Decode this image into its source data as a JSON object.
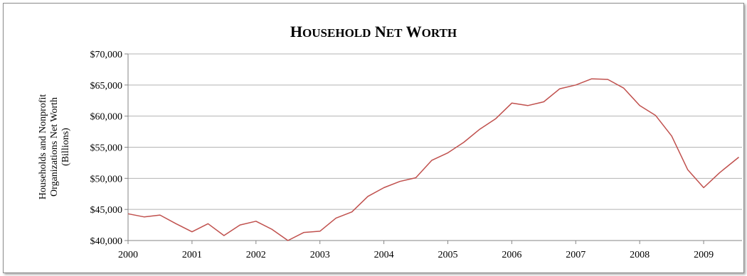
{
  "chart_data": {
    "type": "line",
    "title": "Household Net Worth",
    "ylabel": [
      "Households and Nonprofit",
      "Organizations Net Worth",
      "(Billions)"
    ],
    "xlabel": "",
    "x_ticks": [
      "2000",
      "2001",
      "2002",
      "2003",
      "2004",
      "2005",
      "2006",
      "2007",
      "2008",
      "2009"
    ],
    "y_ticks": [
      "$40,000",
      "$45,000",
      "$50,000",
      "$55,000",
      "$60,000",
      "$65,000",
      "$70,000"
    ],
    "ylim": [
      40000,
      70000
    ],
    "xlim": [
      2000,
      2009.6
    ],
    "grid": true,
    "series_color": "#c0504d",
    "series": [
      {
        "x": [
          2000,
          2000.25,
          2000.5,
          2000.75,
          2001,
          2001.25,
          2001.5,
          2001.75,
          2002,
          2002.25,
          2002.5,
          2002.75,
          2003,
          2003.25,
          2003.5,
          2003.75,
          2004,
          2004.25,
          2004.5,
          2004.75,
          2005,
          2005.25,
          2005.5,
          2005.75,
          2006,
          2006.25,
          2006.5,
          2006.75,
          2007,
          2007.25,
          2007.5,
          2007.75,
          2008,
          2008.25,
          2008.5,
          2008.75,
          2009,
          2009.25,
          2009.55
        ],
        "values": [
          44300,
          43800,
          44100,
          42700,
          41400,
          42700,
          40800,
          42500,
          43100,
          41800,
          40000,
          41300,
          41500,
          43600,
          44600,
          47100,
          48500,
          49500,
          50100,
          52900,
          54100,
          55800,
          57900,
          59600,
          62100,
          61700,
          62300,
          64400,
          65000,
          66000,
          65900,
          64500,
          61700,
          60100,
          56800,
          51400,
          48500,
          50900,
          53400
        ]
      }
    ]
  }
}
